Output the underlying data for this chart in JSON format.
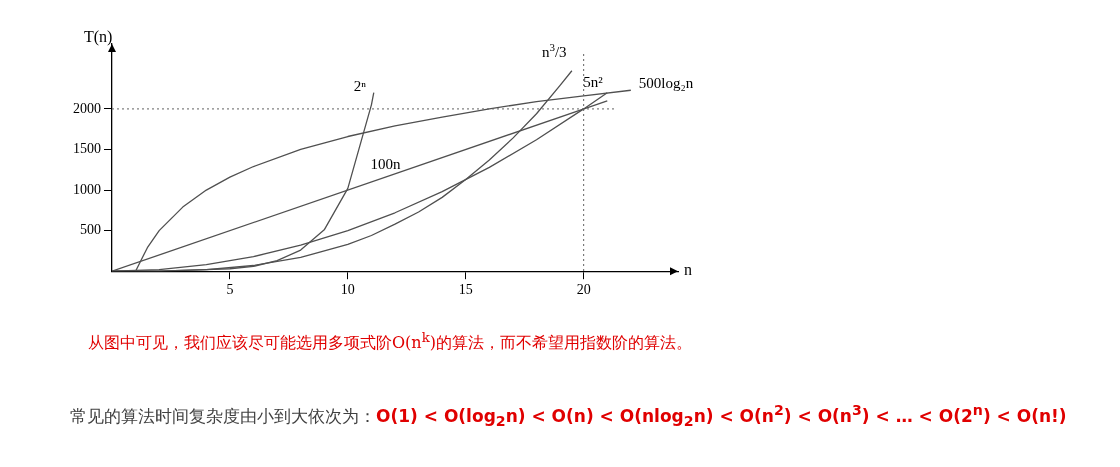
{
  "chart_data": {
    "type": "line",
    "xlabel": "n",
    "ylabel": "T(n)",
    "xlim": [
      0,
      24
    ],
    "ylim": [
      0,
      2800
    ],
    "xticks": [
      5,
      10,
      15,
      20
    ],
    "yticks": [
      500,
      1000,
      1500,
      2000
    ],
    "grid": false,
    "legend": false,
    "marker": "none",
    "line_style": "solid",
    "ref_lines": [
      {
        "axis": "y",
        "value": 2000,
        "line_style": "dotted",
        "color": "#606060"
      },
      {
        "axis": "x",
        "value": 20,
        "line_style": "dotted",
        "color": "#606060"
      }
    ],
    "series": [
      {
        "name": "2ⁿ",
        "color": "#505050",
        "x": [
          0,
          1,
          2,
          3,
          4,
          5,
          6,
          7,
          8,
          9,
          10,
          11,
          11.1
        ],
        "values": [
          0,
          0,
          0,
          10,
          20,
          30,
          60,
          130,
          260,
          510,
          1020,
          2050,
          2200
        ]
      },
      {
        "name": "n$^{3}$/3",
        "color": "#505050",
        "x": [
          0,
          2,
          4,
          6,
          8,
          10,
          11,
          12,
          13,
          14,
          15,
          16,
          17,
          18,
          19,
          19.5
        ],
        "values": [
          0,
          0,
          20,
          70,
          170,
          330,
          440,
          580,
          730,
          910,
          1130,
          1370,
          1640,
          1940,
          2290,
          2470
        ]
      },
      {
        "name": "5n²",
        "color": "#505050",
        "x": [
          0,
          2,
          4,
          6,
          8,
          10,
          12,
          14,
          16,
          18,
          20,
          21
        ],
        "values": [
          0,
          20,
          80,
          180,
          320,
          500,
          720,
          980,
          1280,
          1620,
          2000,
          2200
        ]
      },
      {
        "name": "500log₂n",
        "color": "#505050",
        "x": [
          1,
          1.5,
          2,
          3,
          4,
          5,
          6,
          8,
          10,
          12,
          14,
          16,
          18,
          20,
          22
        ],
        "values": [
          0,
          290,
          500,
          790,
          1000,
          1160,
          1290,
          1500,
          1660,
          1790,
          1900,
          2000,
          2090,
          2160,
          2230
        ]
      },
      {
        "name": "100n",
        "color": "#505050",
        "x": [
          0,
          21
        ],
        "values": [
          0,
          2100
        ]
      }
    ],
    "annotations": [
      "从图中可见，我们应该尽可能选用多项式阶O(n$^{k}$)的算法，而不希望用指数阶的算法。",
      "常见的算法时间复杂度由小到大依次为：",
      "O(1) < O(log$_{2}$n) < O(n) < O(nlog$_{2}$n) < O(n$^{2}$) < O(n$^{3}$) < … < O(2$^{n}$) < O(n!)"
    ]
  }
}
